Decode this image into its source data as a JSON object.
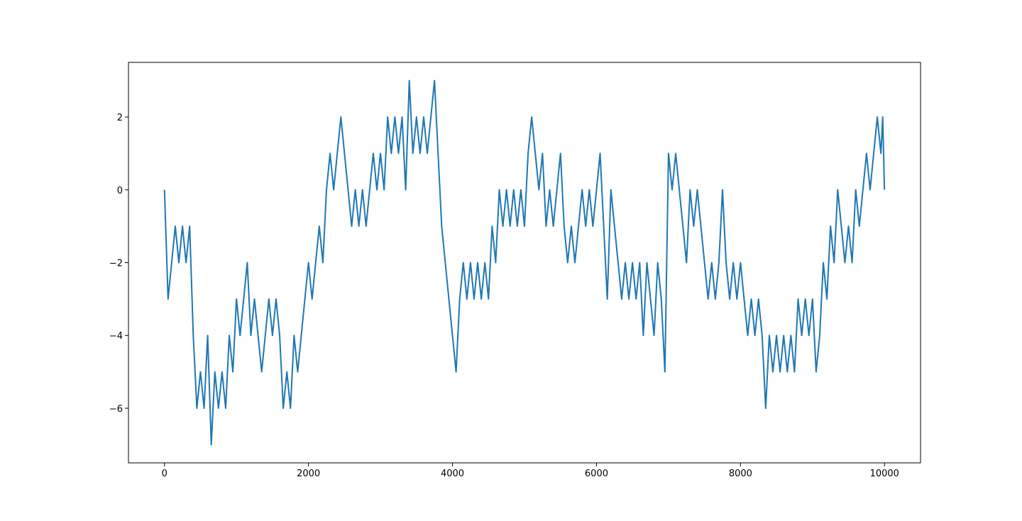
{
  "chart_data": {
    "type": "line",
    "x": [
      0,
      50,
      100,
      150,
      200,
      250,
      300,
      350,
      400,
      450,
      500,
      550,
      600,
      650,
      700,
      750,
      800,
      850,
      900,
      950,
      1000,
      1050,
      1100,
      1150,
      1200,
      1250,
      1300,
      1350,
      1400,
      1450,
      1500,
      1550,
      1600,
      1650,
      1700,
      1750,
      1800,
      1850,
      1900,
      1950,
      2000,
      2050,
      2100,
      2150,
      2200,
      2250,
      2300,
      2350,
      2400,
      2450,
      2500,
      2550,
      2600,
      2650,
      2700,
      2750,
      2800,
      2850,
      2900,
      2950,
      3000,
      3050,
      3100,
      3150,
      3200,
      3250,
      3300,
      3350,
      3400,
      3450,
      3500,
      3550,
      3600,
      3650,
      3700,
      3750,
      3800,
      3850,
      3900,
      3950,
      4000,
      4050,
      4100,
      4150,
      4200,
      4250,
      4300,
      4350,
      4400,
      4450,
      4500,
      4550,
      4600,
      4650,
      4700,
      4750,
      4800,
      4850,
      4900,
      4950,
      5000,
      5050,
      5100,
      5150,
      5200,
      5250,
      5300,
      5350,
      5400,
      5450,
      5500,
      5550,
      5600,
      5650,
      5700,
      5750,
      5800,
      5850,
      5900,
      5950,
      6000,
      6050,
      6100,
      6150,
      6200,
      6250,
      6300,
      6350,
      6400,
      6450,
      6500,
      6550,
      6600,
      6650,
      6700,
      6750,
      6800,
      6850,
      6900,
      6950,
      7000,
      7050,
      7100,
      7150,
      7200,
      7250,
      7300,
      7350,
      7400,
      7450,
      7500,
      7550,
      7600,
      7650,
      7700,
      7750,
      7800,
      7850,
      7900,
      7950,
      8000,
      8050,
      8100,
      8150,
      8200,
      8250,
      8300,
      8350,
      8400,
      8450,
      8500,
      8550,
      8600,
      8650,
      8700,
      8750,
      8800,
      8850,
      8900,
      8950,
      9000,
      9050,
      9100,
      9150,
      9200,
      9250,
      9300,
      9350,
      9400,
      9450,
      9500,
      9550,
      9600,
      9650,
      9700,
      9750,
      9800,
      9850,
      9900,
      9950,
      9975,
      9999
    ],
    "series": [
      {
        "color": "#1f77b4",
        "values": [
          0,
          -3,
          -2,
          -1,
          -2,
          -1,
          -2,
          -1,
          -4,
          -6,
          -5,
          -6,
          -4,
          -7,
          -5,
          -6,
          -5,
          -6,
          -4,
          -5,
          -3,
          -4,
          -3,
          -2,
          -4,
          -3,
          -4,
          -5,
          -4,
          -3,
          -4,
          -3,
          -4,
          -6,
          -5,
          -6,
          -4,
          -5,
          -4,
          -3,
          -2,
          -3,
          -2,
          -1,
          -2,
          0,
          1,
          0,
          1,
          2,
          1,
          0,
          -1,
          0,
          -1,
          0,
          -1,
          0,
          1,
          0,
          1,
          0,
          2,
          1,
          2,
          1,
          2,
          0,
          3,
          1,
          2,
          1,
          2,
          1,
          2,
          3,
          1,
          -1,
          -2,
          -3,
          -4,
          -5,
          -3,
          -2,
          -3,
          -2,
          -3,
          -2,
          -3,
          -2,
          -3,
          -1,
          -2,
          0,
          -1,
          0,
          -1,
          0,
          -1,
          0,
          -1,
          1,
          2,
          1,
          0,
          1,
          -1,
          0,
          -1,
          0,
          1,
          -1,
          -2,
          -1,
          -2,
          -1,
          0,
          -1,
          0,
          -1,
          0,
          1,
          -1,
          -3,
          0,
          -1,
          -2,
          -3,
          -2,
          -3,
          -2,
          -3,
          -2,
          -4,
          -2,
          -3,
          -4,
          -2,
          -3,
          -5,
          1,
          0,
          1,
          0,
          -1,
          -2,
          0,
          -1,
          0,
          -1,
          -2,
          -3,
          -2,
          -3,
          -2,
          0,
          -2,
          -3,
          -2,
          -3,
          -2,
          -3,
          -4,
          -3,
          -4,
          -3,
          -4,
          -6,
          -4,
          -5,
          -4,
          -5,
          -4,
          -5,
          -4,
          -5,
          -3,
          -4,
          -3,
          -4,
          -3,
          -5,
          -4,
          -2,
          -3,
          -1,
          -2,
          0,
          -1,
          -2,
          -1,
          -2,
          0,
          -1,
          0,
          1,
          0,
          1,
          2,
          1,
          2,
          0
        ]
      }
    ],
    "xlim": [
      -500,
      10500
    ],
    "ylim": [
      -7.5,
      3.5
    ],
    "xticks": [
      0,
      2000,
      4000,
      6000,
      8000,
      10000
    ],
    "yticks": [
      {
        "value": -6,
        "label": "−6"
      },
      {
        "value": -4,
        "label": "−4"
      },
      {
        "value": -2,
        "label": "−2"
      },
      0,
      2
    ]
  }
}
